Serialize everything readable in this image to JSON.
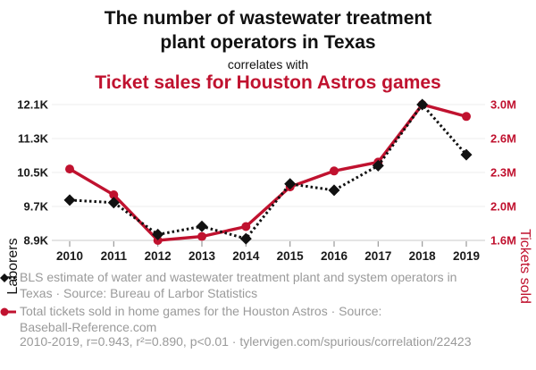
{
  "header": {
    "title_lines": [
      "The number of wastewater treatment",
      "plant operators in Texas"
    ],
    "connector": "correlates with",
    "red_title": "Ticket sales for Houston Astros games",
    "accent_color": "#c0122f"
  },
  "chart_data": {
    "type": "line",
    "x_labels": [
      "2010",
      "2011",
      "2012",
      "2013",
      "2014",
      "2015",
      "2016",
      "2017",
      "2018",
      "2019"
    ],
    "series": [
      {
        "name": "BLS estimate of water and wastewater treatment plant and system operators in Texas",
        "axis": "left",
        "color": "#111111",
        "style": "dashed",
        "marker": "diamond",
        "values": [
          9850,
          9790,
          9040,
          9230,
          8940,
          10230,
          10080,
          10660,
          12100,
          10920
        ]
      },
      {
        "name": "Total tickets sold in home games for the Houston Astros",
        "axis": "right",
        "color": "#c0122f",
        "style": "solid",
        "marker": "circle",
        "values": [
          2330000,
          2070000,
          1610000,
          1650000,
          1750000,
          2150000,
          2310000,
          2400000,
          2980000,
          2860000
        ]
      }
    ],
    "left_axis": {
      "label": "Laborers",
      "ticks_bottom_to_top": [
        "8.9K",
        "9.7K",
        "10.5K",
        "11.3K",
        "12.1K"
      ],
      "min": 8900,
      "max": 12100
    },
    "right_axis": {
      "label": "Tickets sold",
      "ticks_bottom_to_top": [
        "1.6M",
        "2.0M",
        "2.3M",
        "2.6M",
        "3.0M"
      ],
      "min": 1610000,
      "max": 2980000
    },
    "grid": "horizontal-only",
    "legend_position": "below"
  },
  "legend": {
    "entries": [
      {
        "marker": "black-diamond-dashed",
        "lines": [
          "BLS estimate of water and wastewater treatment plant and system operators in",
          "Texas · Source: Bureau of Larbor Statistics"
        ]
      },
      {
        "marker": "red-circle-line",
        "lines": [
          "Total tickets sold in home games for the Houston Astros · Source:",
          "Baseball-Reference.com"
        ]
      }
    ],
    "footnote": "2010-2019, r=0.943, r²=0.890, p<0.01 · tylervigen.com/spurious/correlation/22423",
    "text_color": "#9a9a9a"
  }
}
